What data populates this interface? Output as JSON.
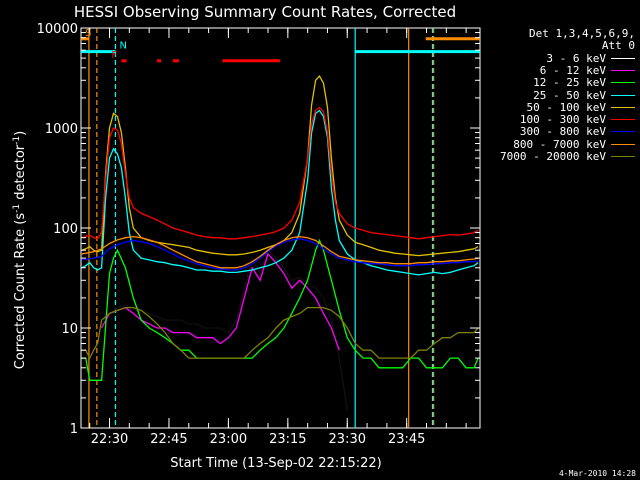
{
  "chart_data": {
    "type": "line",
    "title": "HESSI Observing Summary Count Rates, Corrected",
    "xlabel": "Start Time (13-Sep-02 22:15:22)",
    "ylabel_main": "Corrected Count Rate (s",
    "ylabel_sup1": "-1",
    "ylabel_mid": " detector",
    "ylabel_sup2": "-1",
    "ylabel_end": ")",
    "y_scale": "log",
    "ylim": [
      1,
      10000
    ],
    "y_ticks": [
      {
        "value": 1,
        "label": "1"
      },
      {
        "value": 10,
        "label": "10"
      },
      {
        "value": 100,
        "label": "100"
      },
      {
        "value": 1000,
        "label": "1000"
      },
      {
        "value": 10000,
        "label": "10000"
      }
    ],
    "xlim_minutes": [
      22.8,
      123.5
    ],
    "x_ticks": [
      {
        "minute": 30,
        "label": "22:30"
      },
      {
        "minute": 45,
        "label": "22:45"
      },
      {
        "minute": 60,
        "label": "23:00"
      },
      {
        "minute": 75,
        "label": "23:15"
      },
      {
        "minute": 90,
        "label": "23:30"
      },
      {
        "minute": 105,
        "label": "23:45"
      }
    ],
    "legend_header": [
      "Det 1,3,4,5,6,9,",
      "Att 0"
    ],
    "series": [
      {
        "name": "3 - 6 keV",
        "color": "#000000",
        "x": [
          28,
          30,
          32,
          34,
          36,
          38,
          40,
          42,
          44,
          46,
          48,
          50,
          52,
          54,
          56,
          58,
          60,
          62,
          64,
          66,
          68,
          70,
          72,
          74,
          76,
          78,
          80,
          82,
          84,
          86,
          88,
          90
        ],
        "y": [
          12,
          14,
          16,
          17,
          16,
          15,
          14,
          13,
          12,
          12,
          12,
          11,
          11,
          10,
          10,
          10,
          9,
          12,
          25,
          50,
          35,
          60,
          50,
          40,
          30,
          32,
          28,
          25,
          20,
          12,
          5,
          1.5
        ]
      },
      {
        "name": "6 - 12 keV",
        "color": "#ff00ff",
        "x": [
          28,
          30,
          32,
          34,
          36,
          38,
          40,
          42,
          44,
          46,
          48,
          50,
          52,
          54,
          56,
          58,
          60,
          62,
          64,
          66,
          68,
          70,
          72,
          74,
          76,
          78,
          80,
          82,
          84,
          86,
          88
        ],
        "y": [
          10,
          14,
          15,
          16,
          14,
          12,
          11,
          10,
          10,
          9,
          9,
          9,
          8,
          8,
          8,
          7,
          8,
          10,
          20,
          40,
          30,
          55,
          45,
          35,
          25,
          30,
          25,
          20,
          14,
          10,
          6
        ]
      },
      {
        "name": "12 - 25 keV",
        "color": "#00ff00",
        "x": [
          23,
          24,
          25,
          26,
          27,
          28,
          30,
          31,
          32,
          34,
          36,
          38,
          40,
          42,
          44,
          46,
          48,
          50,
          52,
          54,
          56,
          58,
          60,
          62,
          64,
          66,
          68,
          70,
          72,
          74,
          76,
          78,
          80,
          82,
          83,
          84,
          86,
          88,
          90,
          92,
          94,
          96,
          98,
          100,
          102,
          104,
          106,
          108,
          110,
          112,
          114,
          116,
          118,
          120,
          122,
          123
        ],
        "y": [
          5,
          5,
          3,
          3,
          3,
          3,
          35,
          50,
          60,
          40,
          20,
          12,
          10,
          9,
          8,
          7,
          6,
          6,
          5,
          5,
          5,
          5,
          5,
          5,
          5,
          5,
          6,
          7,
          8,
          10,
          14,
          20,
          30,
          60,
          75,
          60,
          30,
          15,
          8,
          6,
          5,
          5,
          4,
          4,
          4,
          4,
          5,
          5,
          4,
          4,
          4,
          5,
          5,
          4,
          4,
          5
        ]
      },
      {
        "name": "25 - 50 keV",
        "color": "#00ffff",
        "x": [
          23,
          24,
          25,
          26,
          27,
          28,
          29,
          30,
          31,
          32,
          33,
          34,
          35,
          36,
          38,
          40,
          42,
          44,
          46,
          48,
          50,
          52,
          54,
          56,
          58,
          60,
          62,
          64,
          66,
          68,
          70,
          72,
          74,
          76,
          78,
          80,
          81,
          82,
          83,
          84,
          85,
          86,
          87,
          88,
          90,
          92,
          94,
          96,
          98,
          100,
          102,
          104,
          106,
          108,
          110,
          112,
          114,
          116,
          118,
          120,
          122,
          123
        ],
        "y": [
          40,
          42,
          45,
          40,
          38,
          40,
          200,
          500,
          620,
          550,
          400,
          200,
          90,
          60,
          50,
          48,
          46,
          45,
          43,
          42,
          40,
          38,
          38,
          37,
          37,
          36,
          36,
          37,
          38,
          40,
          42,
          45,
          50,
          60,
          90,
          300,
          900,
          1400,
          1500,
          1300,
          800,
          250,
          120,
          75,
          55,
          48,
          45,
          42,
          40,
          38,
          37,
          36,
          35,
          34,
          35,
          36,
          35,
          36,
          38,
          40,
          42,
          45
        ]
      },
      {
        "name": "50 - 100 keV",
        "color": "#e0c000",
        "x": [
          23,
          24,
          25,
          26,
          27,
          28,
          29,
          30,
          31,
          32,
          33,
          34,
          35,
          36,
          38,
          40,
          42,
          44,
          46,
          48,
          50,
          52,
          54,
          56,
          58,
          60,
          62,
          64,
          66,
          68,
          70,
          72,
          74,
          76,
          78,
          80,
          81,
          82,
          83,
          84,
          85,
          86,
          87,
          88,
          90,
          92,
          94,
          96,
          98,
          100,
          102,
          104,
          106,
          108,
          110,
          112,
          114,
          116,
          118,
          120,
          122,
          123
        ],
        "y": [
          60,
          62,
          65,
          60,
          58,
          60,
          350,
          1000,
          1400,
          1300,
          900,
          400,
          160,
          100,
          80,
          75,
          72,
          70,
          68,
          66,
          64,
          60,
          58,
          56,
          55,
          54,
          54,
          55,
          57,
          60,
          64,
          68,
          75,
          90,
          140,
          500,
          1700,
          3000,
          3300,
          2800,
          1600,
          500,
          200,
          120,
          85,
          72,
          68,
          64,
          60,
          58,
          56,
          55,
          54,
          53,
          54,
          55,
          56,
          57,
          58,
          60,
          62,
          65
        ]
      },
      {
        "name": "100 - 300 keV",
        "color": "#ff0000",
        "x": [
          23,
          24,
          25,
          26,
          27,
          28,
          29,
          30,
          31,
          32,
          33,
          34,
          35,
          36,
          38,
          40,
          42,
          44,
          46,
          48,
          50,
          52,
          54,
          56,
          58,
          60,
          62,
          64,
          66,
          68,
          70,
          72,
          74,
          76,
          78,
          80,
          81,
          82,
          83,
          84,
          85,
          86,
          87,
          88,
          90,
          92,
          94,
          96,
          98,
          100,
          102,
          104,
          106,
          108,
          110,
          112,
          114,
          116,
          118,
          120,
          122,
          123
        ],
        "y": [
          80,
          82,
          85,
          80,
          78,
          90,
          300,
          800,
          1000,
          950,
          700,
          350,
          200,
          160,
          140,
          130,
          120,
          110,
          100,
          95,
          90,
          85,
          82,
          80,
          80,
          78,
          78,
          80,
          82,
          85,
          88,
          92,
          100,
          120,
          180,
          500,
          1100,
          1500,
          1600,
          1450,
          900,
          350,
          180,
          140,
          110,
          100,
          95,
          90,
          88,
          86,
          84,
          82,
          80,
          78,
          80,
          82,
          84,
          86,
          85,
          87,
          90,
          95
        ]
      },
      {
        "name": "300 - 800 keV",
        "color": "#0000ff",
        "x": [
          23,
          26,
          28,
          30,
          32,
          34,
          36,
          38,
          40,
          42,
          44,
          46,
          48,
          50,
          52,
          54,
          56,
          58,
          60,
          62,
          64,
          66,
          68,
          70,
          72,
          74,
          76,
          78,
          80,
          82,
          84,
          86,
          88,
          90,
          92,
          94,
          96,
          98,
          100,
          102,
          104,
          106,
          108,
          110,
          112,
          114,
          116,
          118,
          120,
          122,
          123
        ],
        "y": [
          48,
          50,
          52,
          62,
          68,
          72,
          75,
          73,
          70,
          65,
          60,
          55,
          50,
          47,
          44,
          42,
          40,
          39,
          38,
          38,
          40,
          44,
          50,
          58,
          66,
          72,
          76,
          78,
          75,
          70,
          62,
          55,
          50,
          48,
          46,
          45,
          44,
          44,
          43,
          42,
          42,
          42,
          43,
          43,
          44,
          44,
          45,
          45,
          46,
          46,
          47
        ]
      },
      {
        "name": "800 - 7000 keV",
        "color": "#ff8c00",
        "x": [
          23,
          26,
          28,
          30,
          32,
          34,
          36,
          38,
          40,
          42,
          44,
          46,
          48,
          50,
          52,
          54,
          56,
          58,
          60,
          62,
          64,
          66,
          68,
          70,
          72,
          74,
          76,
          78,
          80,
          82,
          84,
          86,
          88,
          90,
          92,
          94,
          96,
          98,
          100,
          102,
          104,
          106,
          108,
          110,
          112,
          114,
          116,
          118,
          120,
          122,
          123
        ],
        "y": [
          55,
          58,
          62,
          70,
          76,
          80,
          82,
          80,
          76,
          72,
          66,
          60,
          55,
          50,
          46,
          44,
          42,
          40,
          40,
          40,
          42,
          46,
          52,
          60,
          68,
          75,
          80,
          82,
          80,
          75,
          66,
          58,
          52,
          50,
          48,
          47,
          46,
          45,
          45,
          44,
          44,
          44,
          45,
          45,
          46,
          46,
          47,
          47,
          48,
          49,
          50
        ]
      },
      {
        "name": "7000 - 20000 keV",
        "color": "#808000",
        "x": [
          23,
          24,
          25,
          26,
          27,
          28,
          30,
          32,
          34,
          36,
          38,
          40,
          42,
          44,
          46,
          48,
          50,
          52,
          54,
          56,
          58,
          60,
          62,
          64,
          66,
          68,
          70,
          72,
          74,
          76,
          78,
          80,
          82,
          84,
          86,
          88,
          90,
          92,
          94,
          96,
          98,
          100,
          102,
          104,
          106,
          108,
          110,
          112,
          114,
          116,
          118,
          120,
          122,
          123
        ],
        "y": [
          6,
          6,
          5,
          6,
          7,
          12,
          14,
          15,
          16,
          16,
          15,
          13,
          11,
          9,
          7,
          6,
          5,
          5,
          5,
          5,
          5,
          5,
          5,
          5,
          6,
          7,
          8,
          10,
          12,
          13,
          14,
          16,
          16,
          16,
          15,
          13,
          10,
          7,
          6,
          6,
          5,
          5,
          5,
          5,
          5,
          6,
          6,
          7,
          8,
          8,
          9,
          9,
          9,
          10
        ]
      }
    ],
    "orbit_markers": [
      {
        "minute": 24.8,
        "color": "#ff8c00",
        "style": "solid"
      },
      {
        "minute": 26.8,
        "color": "#ff8c00",
        "style": "dashed"
      },
      {
        "minute": 31.5,
        "color": "#00ffff",
        "style": "dashed"
      },
      {
        "minute": 92.0,
        "color": "#00ffff",
        "style": "solid"
      },
      {
        "minute": 105.5,
        "color": "#ff8c00",
        "style": "solid"
      },
      {
        "minute": 111.8,
        "color": "#ff8c00",
        "style": "dashed"
      },
      {
        "minute": 111.5,
        "color": "#00ffff",
        "style": "dashed"
      }
    ],
    "flag_bars": [
      {
        "label": "S",
        "color": "#ff8c00",
        "y": 7800,
        "segments": [
          [
            22.8,
            24.8
          ]
        ]
      },
      {
        "label": "S",
        "color": "#ff8c00",
        "y": 7800,
        "segments": [
          [
            109.8,
            123.5
          ]
        ],
        "no_text": true
      },
      {
        "label": "N",
        "color": "#00ffff",
        "y": 5800,
        "segments": [
          [
            22.8,
            31.5
          ],
          [
            92.0,
            123.5
          ]
        ]
      },
      {
        "label": "F",
        "color": "#ff0000",
        "y": 4700,
        "segments": [
          [
            33.0,
            34.3
          ],
          [
            42.0,
            43.0
          ],
          [
            46.0,
            47.5
          ],
          [
            58.5,
            73.0
          ]
        ]
      }
    ]
  },
  "timestamp": "4-Mar-2010 14:28"
}
